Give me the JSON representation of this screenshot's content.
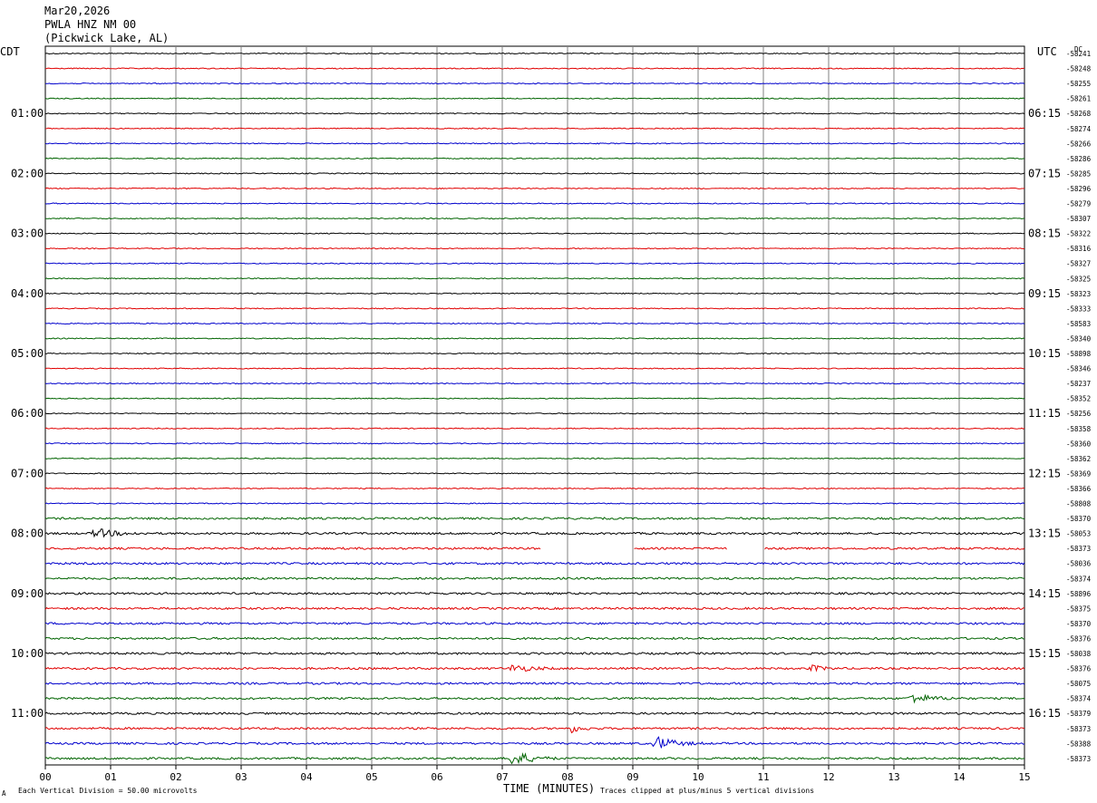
{
  "header": {
    "date": "Mar20,2026",
    "station": "PWLA HNZ NM 00",
    "location": "(Pickwick Lake, AL)"
  },
  "left_timezone": "CDT",
  "right_timezone": "UTC",
  "dc_label": "DC",
  "footer": {
    "scale_note": "Each Vertical Division =   50.00 microvolts",
    "clip_note": "Traces clipped at plus/minus 5 vertical divisions",
    "corner_mark": "A"
  },
  "colors": {
    "trace_cycle": [
      "#000000",
      "#e00000",
      "#0000cc",
      "#006400"
    ],
    "grid": "#808080"
  },
  "chart_data": {
    "type": "line",
    "xlabel": "TIME (MINUTES)",
    "x_ticks": [
      "00",
      "01",
      "02",
      "03",
      "04",
      "05",
      "06",
      "07",
      "08",
      "09",
      "10",
      "11",
      "12",
      "13",
      "14",
      "15"
    ],
    "xlim": [
      0,
      15
    ],
    "hour_labels_left": [
      "01:00",
      "02:00",
      "03:00",
      "04:00",
      "05:00",
      "06:00",
      "07:00",
      "08:00",
      "09:00",
      "10:00",
      "11:00"
    ],
    "hour_labels_right": [
      "06:15",
      "07:15",
      "08:15",
      "09:15",
      "10:15",
      "11:15",
      "12:15",
      "13:15",
      "14:15",
      "15:15",
      "16:15"
    ],
    "dc_offsets": [
      "-58241",
      "-58248",
      "-58255",
      "-58261",
      "-58268",
      "-58274",
      "-58266",
      "-58286",
      "-58285",
      "-58296",
      "-58279",
      "-58307",
      "-58322",
      "-58316",
      "-58327",
      "-58325",
      "-58323",
      "-58333",
      "-58583",
      "-58340",
      "-58898",
      "-58346",
      "-58237",
      "-58352",
      "-58256",
      "-58358",
      "-58360",
      "-58362",
      "-58369",
      "-58366",
      "-58808",
      "-58370",
      "-58053",
      "-58373",
      "-58036",
      "-58374",
      "-58896",
      "-58375",
      "-58370",
      "-58376",
      "-58038",
      "-58376",
      "-58075",
      "-58374",
      "-58379",
      "-58373",
      "-58388",
      "-58373"
    ],
    "trace_count": 48,
    "minutes_per_trace": 15,
    "events": [
      {
        "trace": 32,
        "start_min": 0.7,
        "end_min": 1.6,
        "amp": 1.2
      },
      {
        "trace": 41,
        "start_min": 7.1,
        "end_min": 7.9,
        "amp": 1.0
      },
      {
        "trace": 41,
        "start_min": 11.7,
        "end_min": 12.2,
        "amp": 0.8
      },
      {
        "trace": 43,
        "start_min": 13.2,
        "end_min": 14.2,
        "amp": 1.1
      },
      {
        "trace": 45,
        "start_min": 8.0,
        "end_min": 8.5,
        "amp": 1.0
      },
      {
        "trace": 46,
        "start_min": 9.3,
        "end_min": 10.1,
        "amp": 1.8
      },
      {
        "trace": 47,
        "start_min": 7.1,
        "end_min": 7.9,
        "amp": 2.0
      }
    ],
    "gaps": [
      {
        "trace": 33,
        "start_min": 7.6,
        "end_min": 9.0
      },
      {
        "trace": 33,
        "start_min": 10.45,
        "end_min": 11.0
      }
    ]
  }
}
